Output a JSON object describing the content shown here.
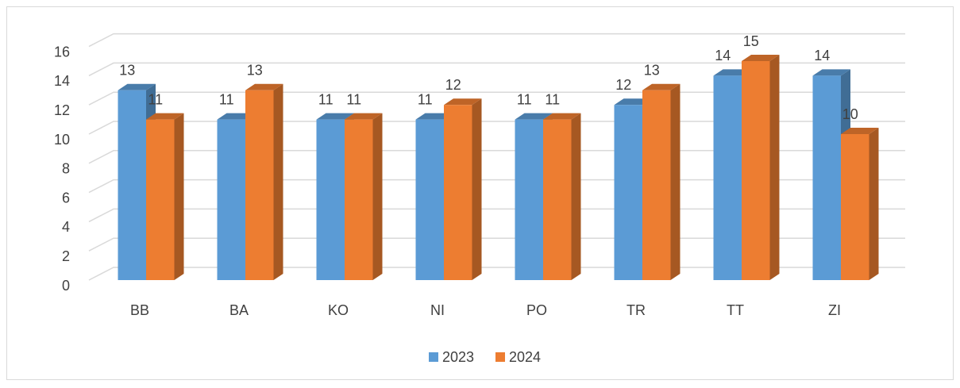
{
  "chart_data": {
    "type": "bar3d",
    "categories": [
      "BB",
      "BA",
      "KO",
      "NI",
      "PO",
      "TR",
      "TT",
      "ZI"
    ],
    "series": [
      {
        "name": "2023",
        "color": "#5b9bd5",
        "values": [
          13,
          11,
          11,
          11,
          11,
          12,
          14,
          14
        ]
      },
      {
        "name": "2024",
        "color": "#ed7d31",
        "values": [
          11,
          13,
          11,
          12,
          11,
          13,
          15,
          10
        ]
      }
    ],
    "ylim": [
      0,
      16
    ],
    "yticks": [
      0,
      2,
      4,
      6,
      8,
      10,
      12,
      14,
      16
    ],
    "grid": true,
    "legend": "bottom"
  }
}
